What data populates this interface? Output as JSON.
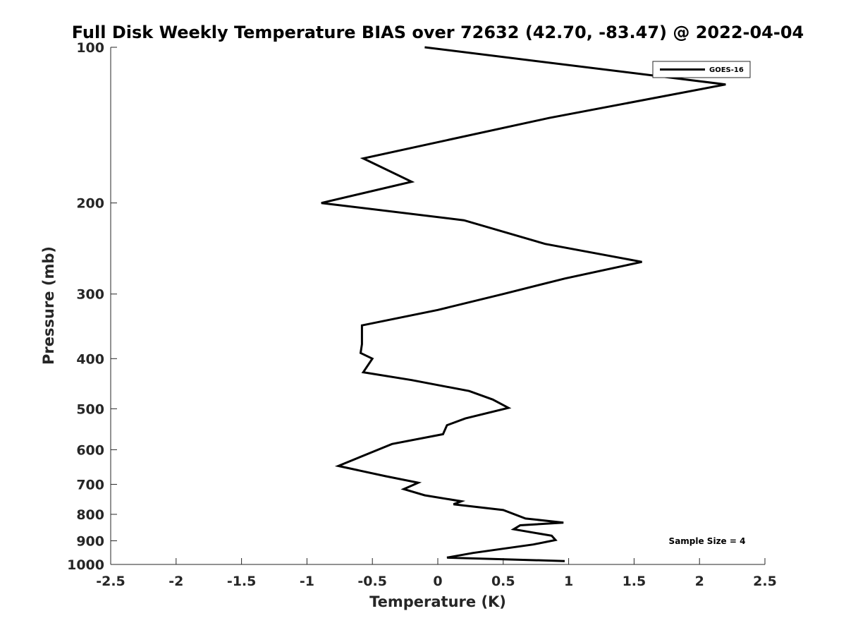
{
  "chart_data": {
    "type": "line",
    "title": "Full Disk Weekly Temperature BIAS over 72632 (42.70, -83.47) @ 2022-04-04",
    "xlabel": "Temperature (K)",
    "ylabel": "Pressure (mb)",
    "xlim": [
      -2.5,
      2.5
    ],
    "ylim": [
      100,
      1000
    ],
    "y_scale": "log",
    "y_reversed": true,
    "grid": false,
    "legend_position": "top-right",
    "x_ticks": [
      "-2.5",
      "-2",
      "-1.5",
      "-1",
      "-0.5",
      "0",
      "0.5",
      "1",
      "1.5",
      "2",
      "2.5"
    ],
    "x_tick_values": [
      -2.5,
      -2,
      -1.5,
      -1,
      -0.5,
      0,
      0.5,
      1,
      1.5,
      2,
      2.5
    ],
    "y_ticks": [
      "100",
      "200",
      "300",
      "400",
      "500",
      "600",
      "700",
      "800",
      "900",
      "1000"
    ],
    "y_tick_values": [
      100,
      200,
      300,
      400,
      500,
      600,
      700,
      800,
      900,
      1000
    ],
    "annotation": "Sample Size = 4",
    "series": [
      {
        "name": "GOES-16",
        "color": "#000000",
        "x": [
          -0.1,
          2.2,
          0.85,
          -0.57,
          -0.2,
          -0.89,
          0.2,
          0.82,
          1.56,
          0.97,
          0.5,
          0.0,
          -0.58,
          -0.58,
          -0.59,
          -0.5,
          -0.57,
          -0.2,
          0.24,
          0.42,
          0.54,
          0.21,
          0.07,
          0.04,
          -0.35,
          -0.76,
          -0.4,
          -0.15,
          -0.26,
          -0.1,
          0.18,
          0.12,
          0.5,
          0.67,
          0.96,
          0.63,
          0.58,
          0.87,
          0.9,
          0.73,
          0.27,
          0.07,
          0.97
        ],
        "y": [
          100,
          118,
          137,
          164,
          182,
          200,
          216,
          240,
          260,
          280,
          300,
          322,
          345,
          375,
          390,
          400,
          425,
          440,
          462,
          480,
          498,
          522,
          538,
          560,
          585,
          645,
          675,
          695,
          715,
          735,
          755,
          765,
          785,
          815,
          830,
          840,
          855,
          880,
          897,
          915,
          950,
          970,
          985
        ]
      }
    ]
  }
}
